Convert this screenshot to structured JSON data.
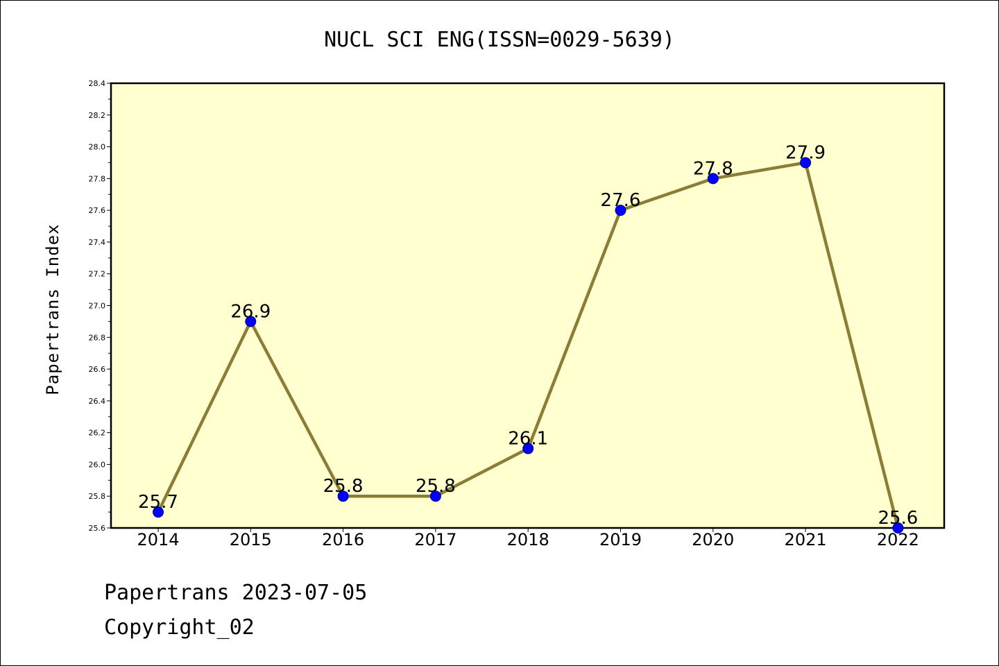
{
  "chart_data": {
    "type": "line",
    "title": "NUCL SCI ENG(ISSN=0029-5639)",
    "ylabel": "Papertrans Index",
    "xlabel": "",
    "categories": [
      "2014",
      "2015",
      "2016",
      "2017",
      "2018",
      "2019",
      "2020",
      "2021",
      "2022"
    ],
    "values": [
      25.7,
      26.9,
      25.8,
      25.8,
      26.1,
      27.6,
      27.8,
      27.9,
      25.6
    ],
    "data_labels": [
      "25.7",
      "26.9",
      "25.8",
      "25.8",
      "26.1",
      "27.6",
      "27.8",
      "27.9",
      "25.6"
    ],
    "ylim": [
      25.6,
      28.4
    ],
    "yticks": [
      "25.6",
      "25.8",
      "26.0",
      "26.2",
      "26.4",
      "26.6",
      "26.8",
      "27.0",
      "27.2",
      "27.4",
      "27.6",
      "27.8",
      "28.0",
      "28.2",
      "28.4"
    ],
    "grid": false,
    "legend": "none",
    "colors": {
      "plot_background": "#FFFFD0",
      "line": "#8B7D35",
      "marker": "#0000FF",
      "marker_edge": "#000080"
    }
  },
  "footer": {
    "line1": "Papertrans 2023-07-05",
    "line2": "Copyright_02"
  }
}
